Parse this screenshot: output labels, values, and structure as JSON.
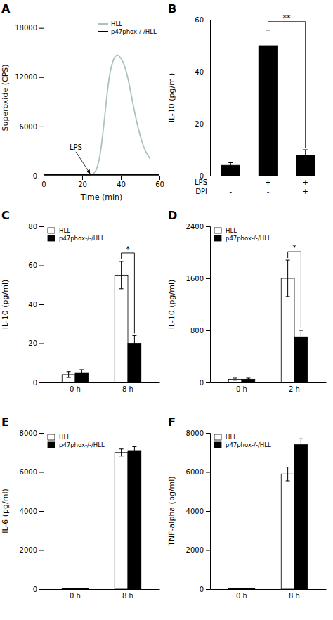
{
  "chart_data": [
    {
      "type": "line",
      "title": "A",
      "x_label": "Time (min)",
      "y_label": "Superoxide (CPS)",
      "series": [
        {
          "name": "HLL",
          "color": "#aac5b5",
          "x": [
            0,
            2,
            4,
            6,
            8,
            10,
            12,
            14,
            16,
            18,
            20,
            22,
            24,
            25,
            26,
            27,
            28,
            29,
            30,
            31,
            32,
            33,
            34,
            35,
            36,
            37,
            38,
            39,
            40,
            41,
            42,
            43,
            44,
            45,
            46,
            47,
            48,
            49,
            50,
            51,
            52,
            53,
            54,
            55
          ],
          "values": [
            100,
            100,
            100,
            100,
            100,
            100,
            100,
            100,
            100,
            100,
            100,
            100,
            100,
            150,
            300,
            600,
            1200,
            2200,
            3800,
            5800,
            8000,
            10200,
            12000,
            13200,
            14000,
            14500,
            14700,
            14600,
            14300,
            13900,
            13300,
            12500,
            11500,
            10300,
            9100,
            7900,
            6800,
            5800,
            4900,
            4100,
            3400,
            2900,
            2500,
            2100
          ]
        },
        {
          "name": "p47phox-/-/HLL",
          "color": "#000000",
          "x": [
            0,
            60
          ],
          "values": [
            100,
            100
          ]
        }
      ],
      "xlim": [
        0,
        60
      ],
      "xticks": [
        0,
        20,
        40,
        60
      ],
      "ylim": [
        0,
        19000
      ],
      "yticks": [
        0,
        6000,
        12000,
        18000
      ],
      "legend": "upper right",
      "annotations": [
        {
          "text": "LPS",
          "x": 24,
          "y": 100
        }
      ]
    },
    {
      "type": "bar",
      "title": "B",
      "y_label": "IL-10 (pg/ml)",
      "category_rows": [
        {
          "name": "LPS",
          "labels": [
            "-",
            "+",
            "+"
          ]
        },
        {
          "name": "DPI",
          "labels": [
            "-",
            "-",
            "+"
          ]
        }
      ],
      "values": [
        4,
        50,
        8
      ],
      "errors": [
        1.0,
        6,
        2
      ],
      "color": "#000000",
      "ylim": [
        0,
        60
      ],
      "yticks": [
        0,
        20,
        40,
        60
      ],
      "significance": [
        {
          "text": "**",
          "between": [
            1,
            2
          ]
        }
      ]
    },
    {
      "type": "bar",
      "title": "C",
      "y_label": "IL-10 (pg/ml)",
      "categories": [
        "0 h",
        "8 h"
      ],
      "series": [
        {
          "name": "HLL",
          "color": "#ffffff",
          "values": [
            4,
            55
          ],
          "errors": [
            1.5,
            7
          ]
        },
        {
          "name": "p47phox-/-/HLL",
          "color": "#000000",
          "values": [
            5,
            20
          ],
          "errors": [
            1.5,
            4
          ]
        }
      ],
      "ylim": [
        0,
        80
      ],
      "yticks": [
        0,
        20,
        40,
        60,
        80
      ],
      "legend": "upper left",
      "significance": [
        {
          "text": "*",
          "category": 1
        }
      ]
    },
    {
      "type": "bar",
      "title": "D",
      "y_label": "IL-10 (pg/ml)",
      "categories": [
        "0 h",
        "2 h"
      ],
      "series": [
        {
          "name": "HLL",
          "color": "#ffffff",
          "values": [
            50,
            1600
          ],
          "errors": [
            15,
            280
          ]
        },
        {
          "name": "p47phox-/-/HLL",
          "color": "#000000",
          "values": [
            50,
            700
          ],
          "errors": [
            15,
            100
          ]
        }
      ],
      "ylim": [
        0,
        2400
      ],
      "yticks": [
        0,
        800,
        1600,
        2400
      ],
      "legend": "upper left",
      "significance": [
        {
          "text": "*",
          "category": 1
        }
      ]
    },
    {
      "type": "bar",
      "title": "E",
      "y_label": "IL-6 (pg/ml)",
      "categories": [
        "0 h",
        "8 h"
      ],
      "series": [
        {
          "name": "HLL",
          "color": "#ffffff",
          "values": [
            30,
            7000
          ],
          "errors": [
            10,
            180
          ]
        },
        {
          "name": "p47phox-/-/HLL",
          "color": "#000000",
          "values": [
            30,
            7100
          ],
          "errors": [
            10,
            200
          ]
        }
      ],
      "ylim": [
        0,
        8000
      ],
      "yticks": [
        0,
        2000,
        4000,
        6000,
        8000
      ],
      "legend": "upper left"
    },
    {
      "type": "bar",
      "title": "F",
      "y_label": "TNF-alpha (pg/ml)",
      "categories": [
        "0 h",
        "8 h"
      ],
      "series": [
        {
          "name": "HLL",
          "color": "#ffffff",
          "values": [
            30,
            5900
          ],
          "errors": [
            10,
            350
          ]
        },
        {
          "name": "p47phox-/-/HLL",
          "color": "#000000",
          "values": [
            30,
            7400
          ],
          "errors": [
            10,
            300
          ]
        }
      ],
      "ylim": [
        0,
        8000
      ],
      "yticks": [
        0,
        2000,
        4000,
        6000,
        8000
      ],
      "legend": "upper left"
    }
  ]
}
